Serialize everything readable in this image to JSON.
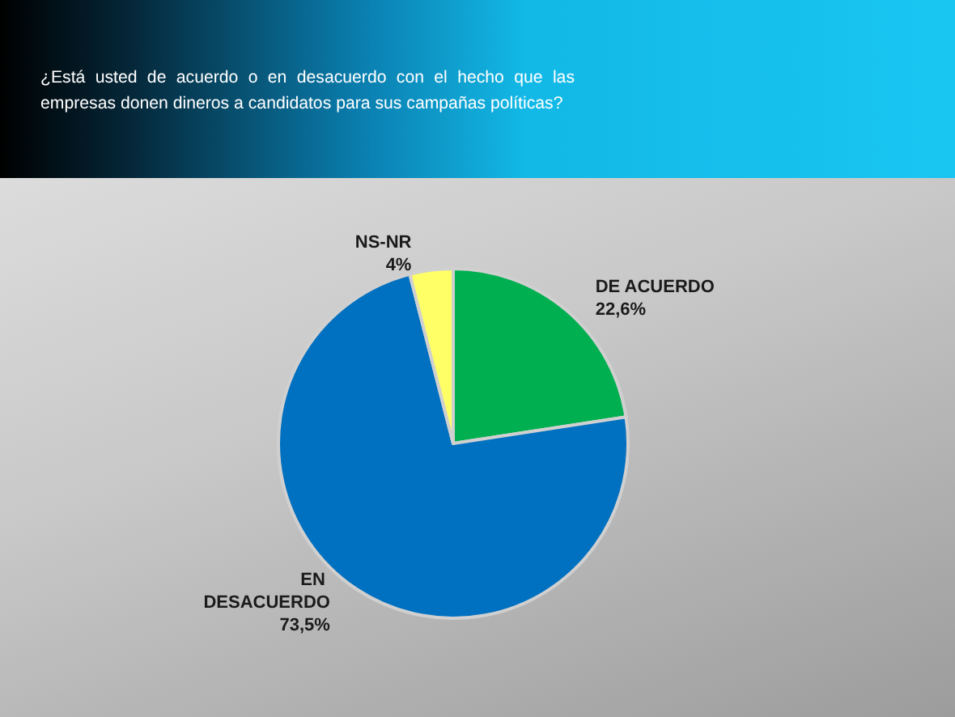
{
  "chart_data": {
    "type": "pie",
    "title": "¿Está usted de acuerdo o en desacuerdo con el hecho que las empresas donen dineros a candidatos para sus campañas políticas?",
    "categories": [
      "DE ACUERDO",
      "EN DESACUERDO",
      "NS-NR"
    ],
    "values": [
      22.6,
      73.5,
      4
    ],
    "value_labels": [
      "22,6%",
      "73,5%",
      "4%"
    ],
    "colors": [
      "#00b050",
      "#0070c0",
      "#ffff66"
    ]
  }
}
